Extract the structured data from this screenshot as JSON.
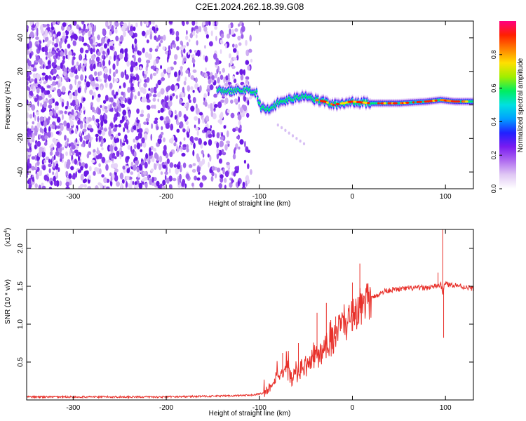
{
  "figure": {
    "title": "C2E1.2024.262.18.39.G08"
  },
  "chart_data": [
    {
      "type": "heatmap",
      "name": "spectrogram",
      "xlabel": "Height of straight line (km)",
      "ylabel": "Frequency (Hz)",
      "xlim": [
        -350,
        130
      ],
      "ylim": [
        -50,
        50
      ],
      "xticks": [
        -300,
        -200,
        -100,
        0,
        100
      ],
      "yticks": [
        -40,
        -20,
        0,
        20,
        40
      ],
      "noise_region_x": [
        -350,
        -108
      ],
      "signal_ridge": [
        {
          "x": -145,
          "y": 9
        },
        {
          "x": -130,
          "y": 8
        },
        {
          "x": -115,
          "y": 9
        },
        {
          "x": -103,
          "y": 7
        },
        {
          "x": -98,
          "y": -2
        },
        {
          "x": -90,
          "y": -3
        },
        {
          "x": -80,
          "y": 1
        },
        {
          "x": -70,
          "y": 3
        },
        {
          "x": -60,
          "y": 4
        },
        {
          "x": -50,
          "y": 6
        },
        {
          "x": -40,
          "y": 3
        },
        {
          "x": -30,
          "y": 2
        },
        {
          "x": -20,
          "y": 0
        },
        {
          "x": -10,
          "y": 1
        },
        {
          "x": 0,
          "y": 2
        },
        {
          "x": 20,
          "y": 1
        },
        {
          "x": 50,
          "y": 1
        },
        {
          "x": 80,
          "y": 2
        },
        {
          "x": 95,
          "y": 3
        },
        {
          "x": 110,
          "y": 2
        },
        {
          "x": 130,
          "y": 2
        }
      ],
      "colorbar": {
        "label": "Normalized spectral amplitude",
        "range": [
          0,
          1
        ],
        "ticks": [
          "0.0",
          "0.2",
          "0.4",
          "0.6",
          "0.8"
        ],
        "colors": [
          "#ffffff",
          "#e0c8f4",
          "#b06cf0",
          "#7a1cf0",
          "#2020ff",
          "#00a0ff",
          "#00e0e0",
          "#00ee60",
          "#a0ee00",
          "#ffe000",
          "#ff8000",
          "#ff2000",
          "#ff0080"
        ]
      }
    },
    {
      "type": "line",
      "name": "snr",
      "xlabel": "Height of straight line (km)",
      "ylabel": "SNR (10 * v/v)",
      "multiplier": "(x10",
      "multiplier_exp": "4",
      "xlim": [
        -350,
        130
      ],
      "ylim": [
        0,
        2.25
      ],
      "xticks": [
        -300,
        -200,
        -100,
        0,
        100
      ],
      "yticks": [
        "0.5",
        "1.0",
        "1.5",
        "2.0"
      ],
      "series": [
        {
          "name": "SNR",
          "color": "#e8302a",
          "x": [
            -350,
            -300,
            -250,
            -200,
            -150,
            -110,
            -95,
            -90,
            -85,
            -80,
            -75,
            -70,
            -65,
            -60,
            -55,
            -50,
            -45,
            -40,
            -35,
            -30,
            -25,
            -20,
            -15,
            -10,
            -5,
            0,
            5,
            10,
            15,
            20,
            25,
            30,
            35,
            40,
            50,
            60,
            70,
            80,
            90,
            95,
            97,
            99,
            102,
            110,
            120,
            130
          ],
          "y": [
            0.04,
            0.04,
            0.04,
            0.04,
            0.05,
            0.06,
            0.09,
            0.15,
            0.25,
            0.35,
            0.3,
            0.38,
            0.28,
            0.33,
            0.42,
            0.45,
            0.48,
            0.6,
            0.55,
            0.75,
            0.72,
            0.82,
            0.95,
            1.05,
            1.0,
            1.15,
            1.15,
            1.25,
            1.3,
            1.33,
            1.38,
            1.4,
            1.44,
            1.45,
            1.46,
            1.47,
            1.48,
            1.48,
            1.5,
            1.52,
            1.4,
            1.55,
            1.52,
            1.52,
            1.49,
            1.47
          ]
        }
      ],
      "spikes": [
        {
          "x": -75,
          "y": 0.62
        },
        {
          "x": -58,
          "y": 0.75
        },
        {
          "x": -38,
          "y": 1.15
        },
        {
          "x": -28,
          "y": 1.28
        },
        {
          "x": -18,
          "y": 1.1
        },
        {
          "x": 0,
          "y": 1.55
        },
        {
          "x": 8,
          "y": 1.8
        },
        {
          "x": 12,
          "y": 1.35
        },
        {
          "x": 92,
          "y": 1.68
        },
        {
          "x": 97,
          "y": 2.25
        },
        {
          "x": 98,
          "y": 0.82
        }
      ]
    }
  ]
}
